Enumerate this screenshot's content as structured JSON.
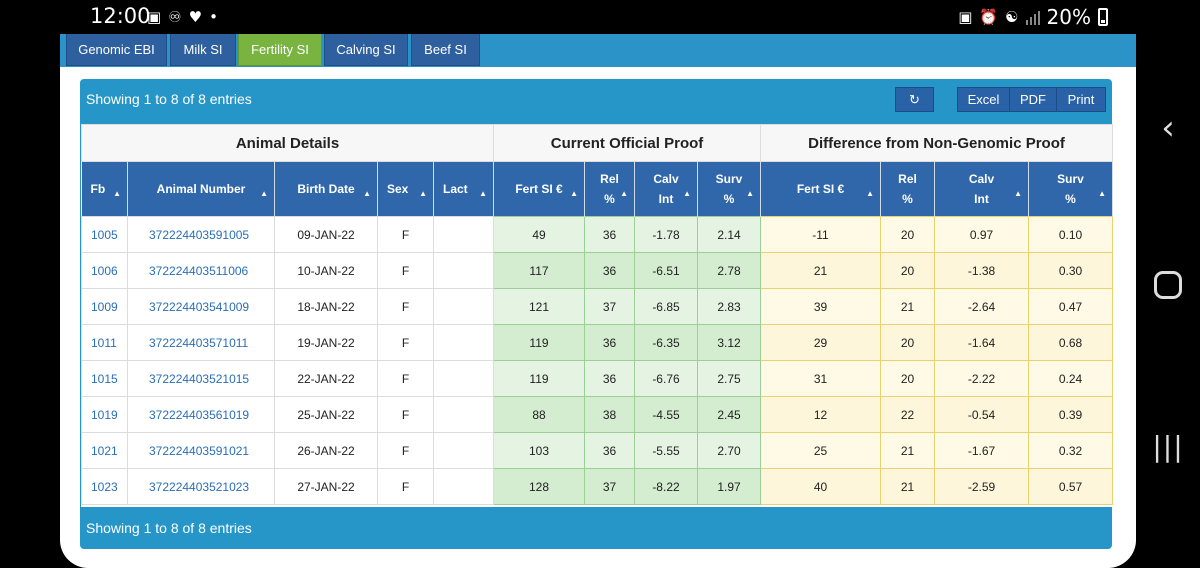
{
  "status_bar": {
    "time": "12:00",
    "left_icons": [
      "image-icon",
      "accessibility-icon",
      "heart-icon",
      "dot-icon"
    ],
    "battery": "20%"
  },
  "tabs": [
    {
      "label": "Genomic EBI",
      "active": false
    },
    {
      "label": "Milk SI",
      "active": false
    },
    {
      "label": "Fertility SI",
      "active": true
    },
    {
      "label": "Calving SI",
      "active": false
    },
    {
      "label": "Beef SI",
      "active": false
    }
  ],
  "info_top": "Showing 1 to 8 of 8 entries",
  "info_bottom": "Showing 1 to 8 of 8 entries",
  "toolbar": {
    "refresh_icon": "refresh-icon",
    "excel_label": "Excel",
    "pdf_label": "PDF",
    "print_label": "Print"
  },
  "groups": {
    "animal": "Animal Details",
    "current": "Current Official Proof",
    "diff": "Difference from Non-Genomic Proof"
  },
  "columns": {
    "fb": "Fb",
    "animal_number": "Animal Number",
    "birth_date": "Birth Date",
    "sex": "Sex",
    "lact": "Lact",
    "c_fert": "Fert SI €",
    "c_rel_1": "Rel",
    "c_rel_2": "%",
    "c_calv_1": "Calv",
    "c_calv_2": "Int",
    "c_surv_1": "Surv",
    "c_surv_2": "%",
    "d_fert": "Fert SI €",
    "d_rel_1": "Rel",
    "d_rel_2": "%",
    "d_calv_1": "Calv",
    "d_calv_2": "Int",
    "d_surv_1": "Surv",
    "d_surv_2": "%"
  },
  "rows": [
    {
      "fb": "1005",
      "animal": "372224403591005",
      "birth": "09-JAN-22",
      "sex": "F",
      "lact": "",
      "c_fert": "49",
      "c_rel": "36",
      "c_calv": "-1.78",
      "c_surv": "2.14",
      "d_fert": "-11",
      "d_rel": "20",
      "d_calv": "0.97",
      "d_surv": "0.10"
    },
    {
      "fb": "1006",
      "animal": "372224403511006",
      "birth": "10-JAN-22",
      "sex": "F",
      "lact": "",
      "c_fert": "117",
      "c_rel": "36",
      "c_calv": "-6.51",
      "c_surv": "2.78",
      "d_fert": "21",
      "d_rel": "20",
      "d_calv": "-1.38",
      "d_surv": "0.30"
    },
    {
      "fb": "1009",
      "animal": "372224403541009",
      "birth": "18-JAN-22",
      "sex": "F",
      "lact": "",
      "c_fert": "121",
      "c_rel": "37",
      "c_calv": "-6.85",
      "c_surv": "2.83",
      "d_fert": "39",
      "d_rel": "21",
      "d_calv": "-2.64",
      "d_surv": "0.47"
    },
    {
      "fb": "1011",
      "animal": "372224403571011",
      "birth": "19-JAN-22",
      "sex": "F",
      "lact": "",
      "c_fert": "119",
      "c_rel": "36",
      "c_calv": "-6.35",
      "c_surv": "3.12",
      "d_fert": "29",
      "d_rel": "20",
      "d_calv": "-1.64",
      "d_surv": "0.68"
    },
    {
      "fb": "1015",
      "animal": "372224403521015",
      "birth": "22-JAN-22",
      "sex": "F",
      "lact": "",
      "c_fert": "119",
      "c_rel": "36",
      "c_calv": "-6.76",
      "c_surv": "2.75",
      "d_fert": "31",
      "d_rel": "20",
      "d_calv": "-2.22",
      "d_surv": "0.24"
    },
    {
      "fb": "1019",
      "animal": "372224403561019",
      "birth": "25-JAN-22",
      "sex": "F",
      "lact": "",
      "c_fert": "88",
      "c_rel": "38",
      "c_calv": "-4.55",
      "c_surv": "2.45",
      "d_fert": "12",
      "d_rel": "22",
      "d_calv": "-0.54",
      "d_surv": "0.39"
    },
    {
      "fb": "1021",
      "animal": "372224403591021",
      "birth": "26-JAN-22",
      "sex": "F",
      "lact": "",
      "c_fert": "103",
      "c_rel": "36",
      "c_calv": "-5.55",
      "c_surv": "2.70",
      "d_fert": "25",
      "d_rel": "21",
      "d_calv": "-1.67",
      "d_surv": "0.32"
    },
    {
      "fb": "1023",
      "animal": "372224403521023",
      "birth": "27-JAN-22",
      "sex": "F",
      "lact": "",
      "c_fert": "128",
      "c_rel": "37",
      "c_calv": "-8.22",
      "c_surv": "1.97",
      "d_fert": "40",
      "d_rel": "21",
      "d_calv": "-2.59",
      "d_surv": "0.57"
    }
  ],
  "nav": {
    "back_icon": "back-icon",
    "home_icon": "home-icon",
    "recents_icon": "recents-icon"
  }
}
